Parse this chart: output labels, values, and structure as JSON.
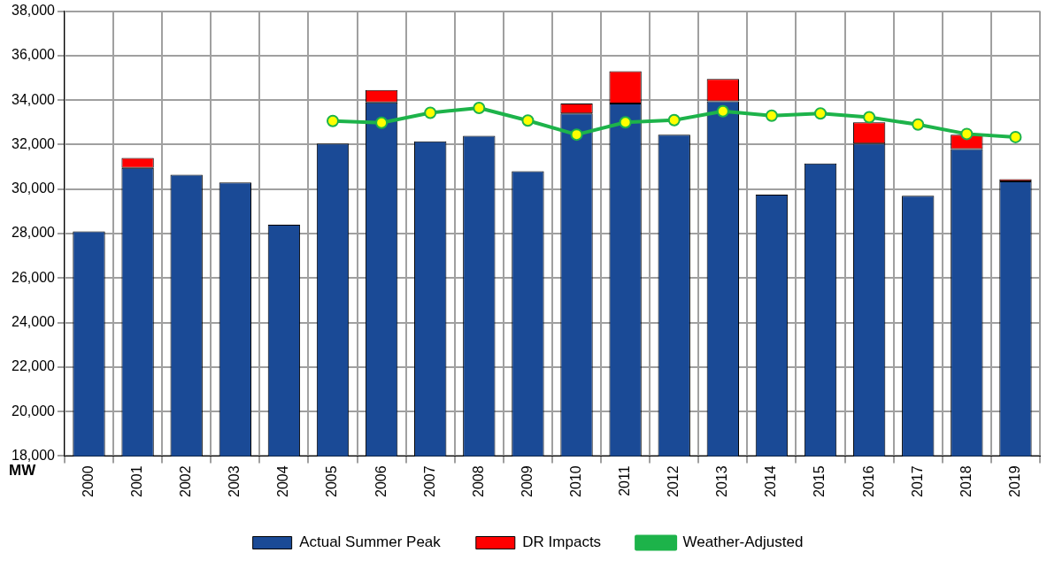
{
  "chart_data": {
    "type": "bar",
    "ylabel": "MW",
    "categories": [
      "2000",
      "2001",
      "2002",
      "2003",
      "2004",
      "2005",
      "2006",
      "2007",
      "2008",
      "2009",
      "2010",
      "2011",
      "2012",
      "2013",
      "2014",
      "2015",
      "2016",
      "2017",
      "2018",
      "2019"
    ],
    "series": [
      {
        "name": "Actual Summer Peak",
        "color": "#1a4a96",
        "values": [
          28100,
          30950,
          30650,
          30300,
          28400,
          32050,
          33900,
          32150,
          32400,
          30800,
          33400,
          33850,
          32450,
          33950,
          29750,
          31150,
          32050,
          29700,
          31800,
          30350
        ]
      },
      {
        "name": "DR Impacts",
        "color": "#ff0000",
        "values": [
          null,
          450,
          null,
          null,
          null,
          null,
          550,
          null,
          null,
          null,
          450,
          1450,
          null,
          1000,
          null,
          null,
          950,
          null,
          650,
          100
        ],
        "base": [
          null,
          30950,
          null,
          null,
          null,
          null,
          33900,
          null,
          null,
          null,
          33400,
          33850,
          null,
          33950,
          null,
          null,
          32050,
          null,
          31800,
          30350
        ]
      },
      {
        "name": "Weather-Adjusted",
        "type": "line",
        "color": "#1db34a",
        "marker": "circle",
        "values": [
          null,
          null,
          null,
          null,
          null,
          33060,
          32980,
          33430,
          33650,
          33080,
          32450,
          33000,
          33100,
          33500,
          33300,
          33400,
          33230,
          32900,
          32480,
          32340
        ]
      }
    ],
    "ylim": [
      18000,
      38000
    ],
    "yticks": [
      {
        "value": 18000,
        "label": "18,000"
      },
      {
        "value": 20000,
        "label": "20,000"
      },
      {
        "value": 22000,
        "label": "22,000"
      },
      {
        "value": 24000,
        "label": "24,000"
      },
      {
        "value": 26000,
        "label": "26,000"
      },
      {
        "value": 28000,
        "label": "28,000"
      },
      {
        "value": 30000,
        "label": "30,000"
      },
      {
        "value": 32000,
        "label": "32,000"
      },
      {
        "value": 34000,
        "label": "34,000"
      },
      {
        "value": 36000,
        "label": "36,000"
      },
      {
        "value": 38000,
        "label": "38,000"
      }
    ],
    "grid": true,
    "legend": "bottom"
  }
}
